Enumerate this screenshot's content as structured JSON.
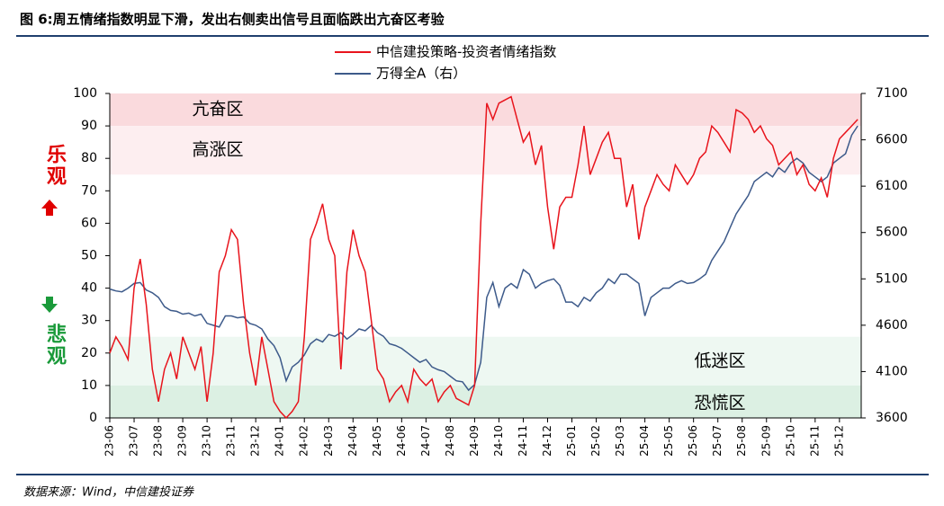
{
  "chart_data": {
    "type": "line",
    "title": "图 6:周五情绪指数明显下滑，发出右侧卖出信号且面临跌出亢奋区考验",
    "source": "数据来源：Wind，中信建投证券",
    "side_labels": [
      {
        "text": "乐观",
        "color": "#e00000"
      },
      {
        "text": "悲观",
        "color": "#1a9a3a"
      }
    ],
    "bands": [
      {
        "label": "亢奋区",
        "range": [
          90,
          100
        ],
        "color": "#fadadd"
      },
      {
        "label": "高涨区",
        "range": [
          75,
          90
        ],
        "color": "#fdeef0"
      },
      {
        "label": "低迷区",
        "range": [
          10,
          25
        ],
        "color": "#eef8f2"
      },
      {
        "label": "恐慌区",
        "range": [
          0,
          10
        ],
        "color": "#dcf0e3"
      }
    ],
    "categories": [
      "23-06",
      null,
      null,
      null,
      "23-07",
      null,
      null,
      null,
      "23-08",
      null,
      null,
      null,
      "23-09",
      null,
      null,
      null,
      "23-10",
      null,
      null,
      null,
      "23-11",
      null,
      null,
      null,
      "23-12",
      null,
      null,
      null,
      "24-01",
      null,
      null,
      null,
      "24-02",
      null,
      null,
      null,
      "24-03",
      null,
      null,
      null,
      "24-04",
      null,
      null,
      null,
      "24-05",
      null,
      null,
      null,
      "24-06",
      null,
      null,
      null,
      "24-07",
      null,
      null,
      null,
      "24-08",
      null,
      null,
      null,
      "24-09",
      null,
      null,
      null,
      "24-10",
      null,
      null,
      null,
      "24-11",
      null,
      null,
      null,
      "24-12",
      null,
      null,
      null,
      "25-01",
      null,
      null,
      null,
      "25-02",
      null,
      null,
      null,
      "25-03",
      null,
      null,
      null,
      "25-04",
      null,
      null,
      null,
      "25-05",
      null,
      null,
      null,
      "25-06",
      null,
      null,
      null,
      "25-07",
      null,
      null,
      null,
      "25-08",
      null,
      null,
      null,
      "25-09",
      null,
      null,
      null,
      "25-10",
      null,
      null,
      null,
      "25-11",
      null,
      null,
      null,
      "25-12",
      null,
      null,
      null
    ],
    "series": [
      {
        "name": "中信建投策略-投资者情绪指数",
        "color": "#e8141c",
        "values": [
          20,
          25,
          22,
          18,
          40,
          49,
          35,
          15,
          5,
          15,
          20,
          12,
          25,
          20,
          15,
          22,
          5,
          20,
          45,
          50,
          58,
          55,
          35,
          20,
          10,
          25,
          15,
          5,
          2,
          0,
          2,
          5,
          25,
          55,
          60,
          66,
          55,
          50,
          15,
          45,
          58,
          50,
          45,
          30,
          15,
          12,
          5,
          8,
          10,
          5,
          15,
          12,
          10,
          12,
          5,
          8,
          10,
          6,
          5,
          4,
          10,
          60,
          97,
          92,
          97,
          98,
          99,
          92,
          85,
          88,
          78,
          84,
          65,
          52,
          65,
          68,
          68,
          78,
          90,
          75,
          80,
          85,
          88,
          80,
          80,
          65,
          72,
          55,
          65,
          70,
          75,
          72,
          70,
          78,
          75,
          72,
          75,
          80,
          82,
          90,
          88,
          85,
          82,
          95,
          94,
          92,
          88,
          90,
          86,
          84,
          78,
          80,
          82,
          75,
          78,
          72,
          70,
          74,
          68,
          80,
          86,
          88,
          90,
          92
        ]
      },
      {
        "name": "万得全A（右）",
        "color": "#3d5a8a",
        "axis": "y2",
        "values": [
          4990,
          4970,
          4960,
          5000,
          5050,
          5060,
          4980,
          4950,
          4900,
          4800,
          4760,
          4750,
          4720,
          4730,
          4700,
          4720,
          4620,
          4600,
          4580,
          4700,
          4700,
          4680,
          4690,
          4620,
          4600,
          4560,
          4450,
          4380,
          4250,
          4000,
          4150,
          4200,
          4280,
          4400,
          4450,
          4420,
          4500,
          4480,
          4520,
          4450,
          4500,
          4560,
          4540,
          4600,
          4520,
          4480,
          4400,
          4380,
          4350,
          4300,
          4250,
          4200,
          4230,
          4150,
          4120,
          4100,
          4050,
          4000,
          3990,
          3900,
          3960,
          4200,
          4900,
          5060,
          4800,
          5000,
          5050,
          5000,
          5200,
          5150,
          5000,
          5050,
          5080,
          5100,
          5030,
          4850,
          4850,
          4800,
          4900,
          4860,
          4950,
          5000,
          5100,
          5050,
          5150,
          5150,
          5100,
          5050,
          4700,
          4900,
          4950,
          5000,
          5000,
          5050,
          5080,
          5050,
          5060,
          5100,
          5150,
          5300,
          5400,
          5500,
          5650,
          5800,
          5900,
          6000,
          6150,
          6200,
          6250,
          6200,
          6300,
          6250,
          6350,
          6400,
          6350,
          6250,
          6200,
          6150,
          6200,
          6350,
          6400,
          6450,
          6650,
          6750
        ]
      }
    ],
    "ylim": [
      0,
      100
    ],
    "yticks": [
      0,
      10,
      20,
      30,
      40,
      50,
      60,
      70,
      80,
      90,
      100
    ],
    "y2lim": [
      3600,
      7100
    ],
    "y2ticks": [
      3600,
      4100,
      4600,
      5100,
      5600,
      6100,
      6600,
      7100
    ]
  }
}
